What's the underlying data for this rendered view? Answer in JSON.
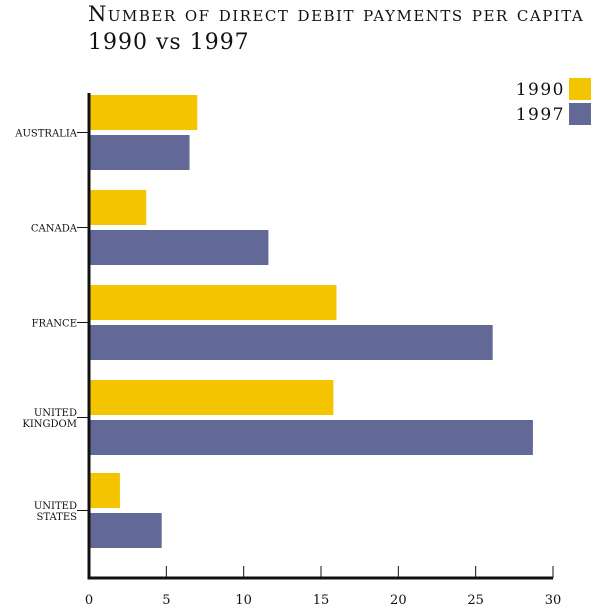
{
  "chart_data": {
    "type": "bar",
    "orientation": "horizontal",
    "title": "Number of direct debit payments per capita",
    "subtitle": "1990 vs 1997",
    "categories": [
      [
        "AUSTRALIA"
      ],
      [
        "CANADA"
      ],
      [
        "FRANCE"
      ],
      [
        "UNITED",
        "KINGDOM"
      ],
      [
        "UNITED",
        "STATES"
      ]
    ],
    "series": [
      {
        "name": "1990",
        "color": "#f5c400",
        "values": [
          7.0,
          3.7,
          16.0,
          15.8,
          2.0
        ]
      },
      {
        "name": "1997",
        "color": "#626996",
        "values": [
          6.5,
          11.6,
          26.1,
          28.7,
          4.7
        ]
      }
    ],
    "xlim": [
      0,
      30
    ],
    "xticks": [
      "0",
      "5",
      "10",
      "15",
      "20",
      "25",
      "30"
    ],
    "grid": false,
    "legend": "top-right"
  }
}
